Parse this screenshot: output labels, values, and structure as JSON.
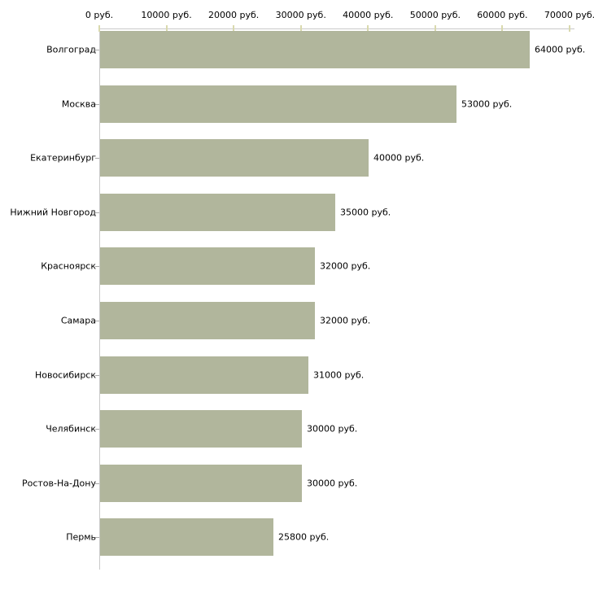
{
  "chart_data": {
    "type": "bar",
    "orientation": "horizontal",
    "categories": [
      "Волгоград",
      "Москва",
      "Екатеринбург",
      "Нижний Новгород",
      "Красноярск",
      "Самара",
      "Новосибирск",
      "Челябинск",
      "Ростов-На-Дону",
      "Пермь"
    ],
    "values": [
      64000,
      53000,
      40000,
      35000,
      32000,
      32000,
      31000,
      30000,
      30000,
      25800
    ],
    "value_labels": [
      "64000 руб.",
      "53000 руб.",
      "40000 руб.",
      "35000 руб.",
      "32000 руб.",
      "32000 руб.",
      "31000 руб.",
      "30000 руб.",
      "30000 руб.",
      "25800 руб."
    ],
    "unit": "руб.",
    "x_axis": {
      "position": "top",
      "min": 0,
      "max": 70000,
      "tick_interval": 10000,
      "tick_labels": [
        "0 руб.",
        "10000 руб.",
        "20000 руб.",
        "30000 руб.",
        "40000 руб.",
        "50000 руб.",
        "60000 руб.",
        "70000 руб."
      ]
    },
    "grid": false,
    "legend": false,
    "colors": {
      "bar": "#b1b69c",
      "axis_line": "#c9c9c9",
      "x_tick": "#d9d9ae",
      "y_tick": "#aaaaaa",
      "text": "#000000",
      "background": "#ffffff"
    }
  }
}
